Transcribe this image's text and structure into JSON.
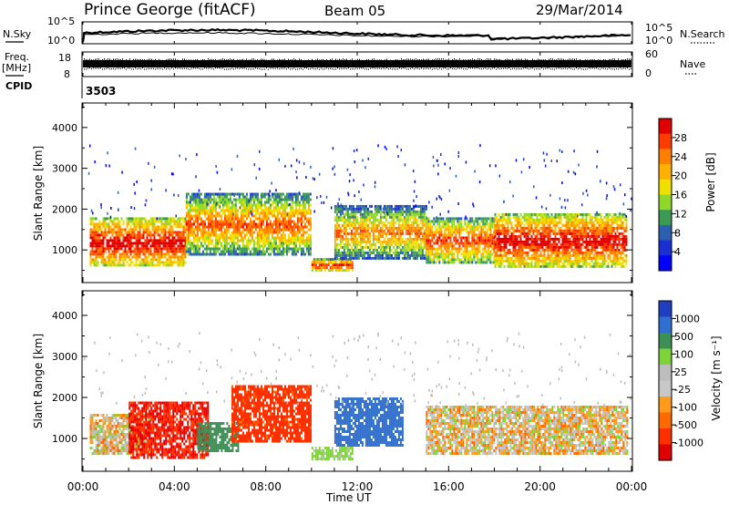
{
  "header": {
    "station": "Prince George (fitACF)",
    "beam": "Beam 05",
    "date": "29/Mar/2014"
  },
  "top_panels": {
    "nsky_label": "N.Sky",
    "nsky_ticks": [
      "10^5",
      "10^0"
    ],
    "nsearch_label": "N.Search",
    "nsearch_ticks": [
      "10^5",
      "10^0"
    ],
    "freq_label": "Freq.",
    "freq_unit": "[MHz]",
    "freq_ticks": [
      "18",
      "8"
    ],
    "nave_label": "Nave",
    "nave_ticks": [
      "60",
      "0"
    ],
    "cpid_label": "CPID",
    "cpid_value": "3503"
  },
  "chart_data": [
    {
      "type": "heatmap",
      "name": "power",
      "ylabel": "Slant Range [km]",
      "ylim": [
        200,
        4600
      ],
      "yticks": [
        1000,
        2000,
        3000,
        4000
      ],
      "xlim": [
        0,
        24
      ],
      "colorbar": {
        "label": "Power [dB]",
        "ticks": [
          "28",
          "24",
          "20",
          "16",
          "12",
          "8",
          "4"
        ],
        "colors": [
          "#e10000",
          "#ff3c00",
          "#ff8000",
          "#ffb000",
          "#f0e000",
          "#8fd82a",
          "#3c9a55",
          "#2c5fb0",
          "#1a2fd2",
          "#0000ff"
        ]
      },
      "regions": [
        {
          "t0": 0.3,
          "t1": 4.5,
          "r0": 600,
          "r1": 1800,
          "level": 22
        },
        {
          "t0": 4.5,
          "t1": 10.0,
          "r0": 900,
          "r1": 2400,
          "level": 16
        },
        {
          "t0": 10.0,
          "t1": 11.8,
          "r0": 500,
          "r1": 800,
          "level": 20
        },
        {
          "t0": 11.0,
          "t1": 15.0,
          "r0": 800,
          "r1": 2100,
          "level": 14
        },
        {
          "t0": 15.0,
          "t1": 18.0,
          "r0": 700,
          "r1": 1800,
          "level": 18
        },
        {
          "t0": 18.0,
          "t1": 23.8,
          "r0": 600,
          "r1": 1900,
          "level": 22
        }
      ]
    },
    {
      "type": "heatmap",
      "name": "velocity",
      "ylabel": "Slant Range [km]",
      "ylim": [
        200,
        4600
      ],
      "yticks": [
        1000,
        2000,
        3000,
        4000
      ],
      "xlim": [
        0,
        24
      ],
      "colorbar": {
        "label": "Velocity [m s⁻¹]",
        "ticks": [
          "1000",
          "500",
          "100",
          "25",
          "-25",
          "-100",
          "-500",
          "-1000"
        ],
        "colors": [
          "#1f3fc0",
          "#2e6fd0",
          "#3c8f55",
          "#7fd33a",
          "#bdbdbd",
          "#c8c8c8",
          "#ff9a1a",
          "#ff6a00",
          "#ff3000",
          "#e00000"
        ]
      },
      "regions": [
        {
          "t0": 0.3,
          "t1": 3.0,
          "r0": 600,
          "r1": 1600,
          "level": 0
        },
        {
          "t0": 2.0,
          "t1": 5.5,
          "r0": 500,
          "r1": 1900,
          "level": -400
        },
        {
          "t0": 5.0,
          "t1": 6.8,
          "r0": 700,
          "r1": 1400,
          "level": 300
        },
        {
          "t0": 6.5,
          "t1": 10.0,
          "r0": 900,
          "r1": 2300,
          "level": -200
        },
        {
          "t0": 10.0,
          "t1": 11.8,
          "r0": 500,
          "r1": 800,
          "level": 80
        },
        {
          "t0": 11.0,
          "t1": 14.0,
          "r0": 800,
          "r1": 2000,
          "level": 600
        },
        {
          "t0": 15.0,
          "t1": 23.8,
          "r0": 600,
          "r1": 1800,
          "level": 0
        }
      ]
    }
  ],
  "x_axis": {
    "ticks": [
      "00:00",
      "04:00",
      "08:00",
      "12:00",
      "16:00",
      "20:00",
      "00:00"
    ],
    "label": "Time UT"
  }
}
